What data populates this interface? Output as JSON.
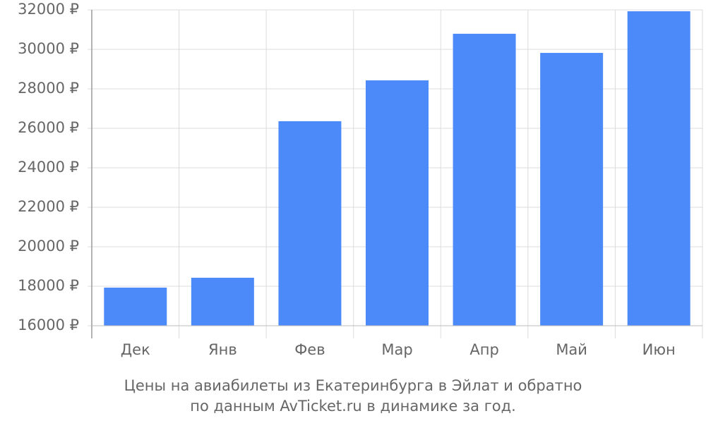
{
  "chart_data": {
    "type": "bar",
    "title_lines": [
      "Цены на авиабилеты из Екатеринбурга в Эйлат и обратно",
      "по данным AvTicket.ru в динамике за год."
    ],
    "categories": [
      "Дек",
      "Янв",
      "Фев",
      "Мар",
      "Апр",
      "Май",
      "Июн"
    ],
    "values": [
      17930,
      18430,
      26360,
      28430,
      30790,
      29820,
      31930
    ],
    "color": "#4c8af9",
    "ylim": [
      16000,
      32000
    ],
    "yticks": [
      {
        "value": 16000,
        "label": "16000 ₽"
      },
      {
        "value": 18000,
        "label": "18000 ₽"
      },
      {
        "value": 20000,
        "label": "20000 ₽"
      },
      {
        "value": 22000,
        "label": "22000 ₽"
      },
      {
        "value": 24000,
        "label": "24000 ₽"
      },
      {
        "value": 26000,
        "label": "26000 ₽"
      },
      {
        "value": 28000,
        "label": "28000 ₽"
      },
      {
        "value": 30000,
        "label": "30000 ₽"
      },
      {
        "value": 32000,
        "label": "32000 ₽"
      }
    ],
    "grid": true
  }
}
